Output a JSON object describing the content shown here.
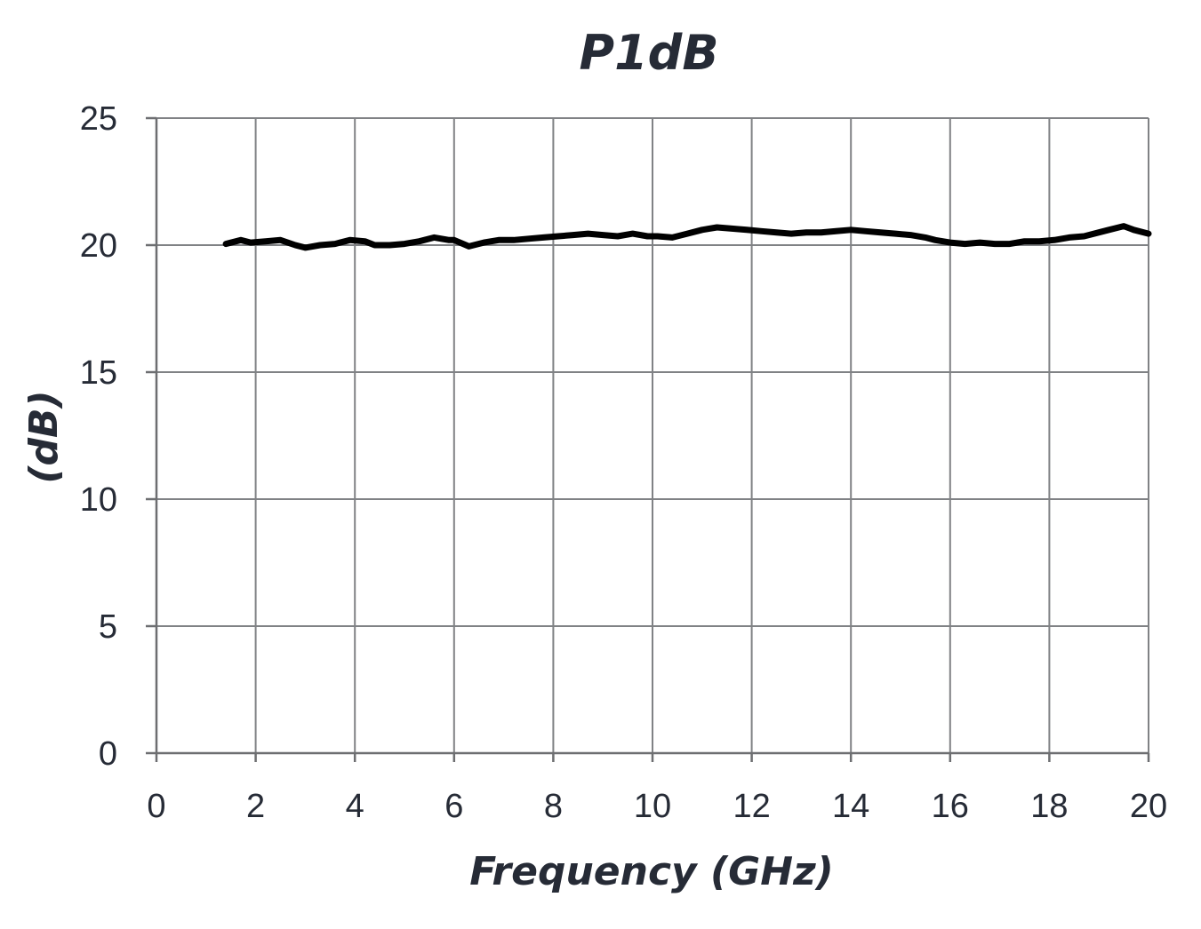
{
  "chart_data": {
    "type": "line",
    "title": "P1dB",
    "xlabel": "Frequency (GHz)",
    "ylabel": "(dB)",
    "xlim": [
      0,
      20
    ],
    "ylim": [
      0,
      25
    ],
    "x_ticks": [
      "0",
      "2",
      "4",
      "6",
      "8",
      "10",
      "12",
      "14",
      "16",
      "18",
      "20"
    ],
    "y_ticks": [
      "0",
      "5",
      "10",
      "15",
      "20",
      "25"
    ],
    "grid": true,
    "legend": "none",
    "series": [
      {
        "color": "#000000",
        "x": [
          1.4,
          1.7,
          1.9,
          2.2,
          2.5,
          2.8,
          3.0,
          3.3,
          3.6,
          3.9,
          4.2,
          4.4,
          4.7,
          5.0,
          5.3,
          5.6,
          5.9,
          6.0,
          6.3,
          6.6,
          6.9,
          7.2,
          7.5,
          7.8,
          8.1,
          8.4,
          8.7,
          9.0,
          9.3,
          9.6,
          9.9,
          10.1,
          10.4,
          10.7,
          11.0,
          11.3,
          11.6,
          11.9,
          12.2,
          12.5,
          12.8,
          13.1,
          13.4,
          13.7,
          14.0,
          14.3,
          14.6,
          14.9,
          15.2,
          15.5,
          15.7,
          16.0,
          16.3,
          16.6,
          16.9,
          17.2,
          17.5,
          17.8,
          18.1,
          18.4,
          18.7,
          19.0,
          19.2,
          19.5,
          19.7,
          20.0
        ],
        "y": [
          20.05,
          20.2,
          20.1,
          20.15,
          20.2,
          20.0,
          19.9,
          20.0,
          20.05,
          20.2,
          20.15,
          20.0,
          20.0,
          20.05,
          20.15,
          20.3,
          20.2,
          20.2,
          19.95,
          20.1,
          20.2,
          20.2,
          20.25,
          20.3,
          20.35,
          20.4,
          20.45,
          20.4,
          20.35,
          20.45,
          20.35,
          20.35,
          20.3,
          20.45,
          20.6,
          20.7,
          20.65,
          20.6,
          20.55,
          20.5,
          20.45,
          20.5,
          20.5,
          20.55,
          20.6,
          20.55,
          20.5,
          20.45,
          20.4,
          20.3,
          20.2,
          20.1,
          20.05,
          20.1,
          20.05,
          20.05,
          20.15,
          20.15,
          20.2,
          20.3,
          20.35,
          20.5,
          20.6,
          20.75,
          20.6,
          20.45
        ]
      }
    ]
  }
}
